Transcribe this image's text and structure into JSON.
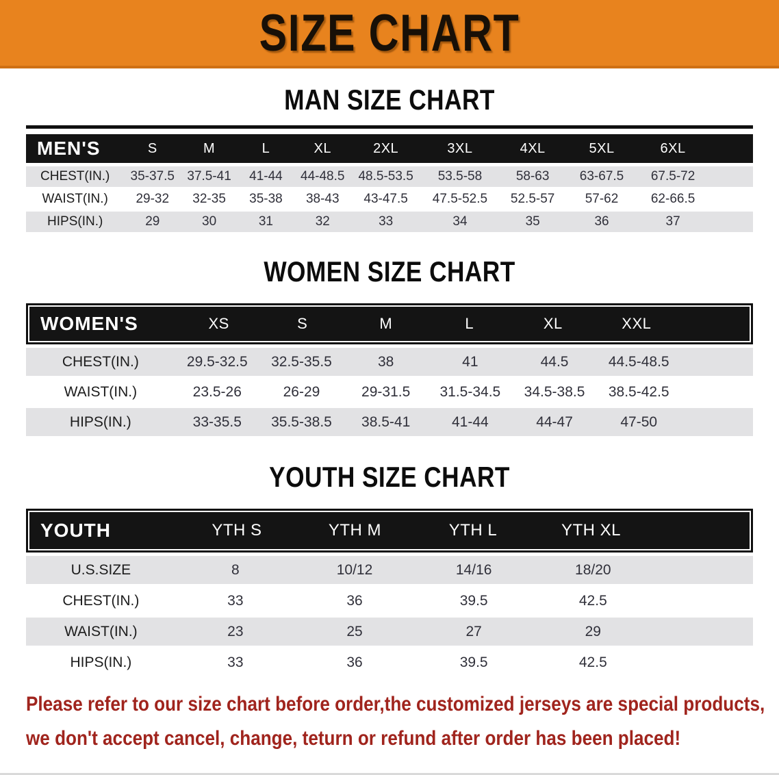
{
  "banner": {
    "title": "SIZE CHART",
    "bg_color": "#E8831E"
  },
  "sections": [
    {
      "heading": "MAN SIZE CHART",
      "table": {
        "label": "MEN'S",
        "columns": [
          "S",
          "M",
          "L",
          "XL",
          "2XL",
          "3XL",
          "4XL",
          "5XL",
          "6XL"
        ],
        "rows": [
          {
            "label": "CHEST(IN.)",
            "values": [
              "35-37.5",
              "37.5-41",
              "41-44",
              "44-48.5",
              "48.5-53.5",
              "53.5-58",
              "58-63",
              "63-67.5",
              "67.5-72"
            ]
          },
          {
            "label": "WAIST(IN.)",
            "values": [
              "29-32",
              "32-35",
              "35-38",
              "38-43",
              "43-47.5",
              "47.5-52.5",
              "52.5-57",
              "57-62",
              "62-66.5"
            ]
          },
          {
            "label": "HIPS(IN.)",
            "values": [
              "29",
              "30",
              "31",
              "32",
              "33",
              "34",
              "35",
              "36",
              "37"
            ]
          }
        ]
      }
    },
    {
      "heading": "WOMEN SIZE CHART",
      "table": {
        "label": "WOMEN'S",
        "columns": [
          "XS",
          "S",
          "M",
          "L",
          "XL",
          "XXL"
        ],
        "rows": [
          {
            "label": "CHEST(IN.)",
            "values": [
              "29.5-32.5",
              "32.5-35.5",
              "38",
              "41",
              "44.5",
              "44.5-48.5"
            ]
          },
          {
            "label": "WAIST(IN.)",
            "values": [
              "23.5-26",
              "26-29",
              "29-31.5",
              "31.5-34.5",
              "34.5-38.5",
              "38.5-42.5"
            ]
          },
          {
            "label": "HIPS(IN.)",
            "values": [
              "33-35.5",
              "35.5-38.5",
              "38.5-41",
              "41-44",
              "44-47",
              "47-50"
            ]
          }
        ]
      }
    },
    {
      "heading": "YOUTH SIZE CHART",
      "table": {
        "label": "YOUTH",
        "columns": [
          "YTH S",
          "YTH M",
          "YTH L",
          "YTH XL"
        ],
        "rows": [
          {
            "label": "U.S.SIZE",
            "values": [
              "8",
              "10/12",
              "14/16",
              "18/20"
            ]
          },
          {
            "label": "CHEST(IN.)",
            "values": [
              "33",
              "36",
              "39.5",
              "42.5"
            ]
          },
          {
            "label": "WAIST(IN.)",
            "values": [
              "23",
              "25",
              "27",
              "29"
            ]
          },
          {
            "label": "HIPS(IN.)",
            "values": [
              "33",
              "36",
              "39.5",
              "42.5"
            ]
          }
        ]
      }
    }
  ],
  "disclaimer": {
    "line1": "Please refer to our size chart before order,the customized jerseys are special products,",
    "line2": "we don't accept cancel, change, teturn or refund after order has been placed!",
    "text_color": "#A0241D"
  }
}
